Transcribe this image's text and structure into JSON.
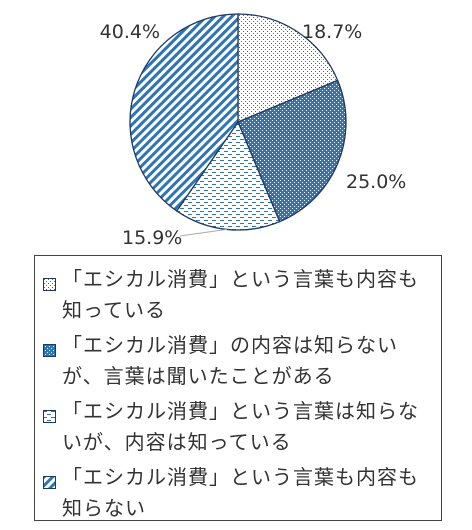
{
  "chart_data": {
    "type": "pie",
    "title": "",
    "start": "12 o'clock",
    "direction": "clockwise",
    "slices": [
      {
        "label": "「エシカル消費」という言葉も内容も知っている",
        "value": 18.7,
        "value_label": "18.7%",
        "pattern": "dots-sparse"
      },
      {
        "label": "「エシカル消費」の内容は知らないが、言葉は聞いたことがある",
        "value": 25.0,
        "value_label": "25.0%",
        "pattern": "dots-dense-blue"
      },
      {
        "label": "「エシカル消費」という言葉は知らないが、内容は知っている",
        "value": 15.9,
        "value_label": "15.9%",
        "pattern": "dashes"
      },
      {
        "label": "「エシカル消費」という言葉も内容も知らない",
        "value": 40.4,
        "value_label": "40.4%",
        "pattern": "diagonal-stripes"
      }
    ],
    "legend": {
      "placement": "bottom",
      "boxed": true
    },
    "colors": {
      "outline": "#1f3864",
      "pattern_blue": "#2e75b6",
      "light_fill": "#ffffff"
    }
  }
}
